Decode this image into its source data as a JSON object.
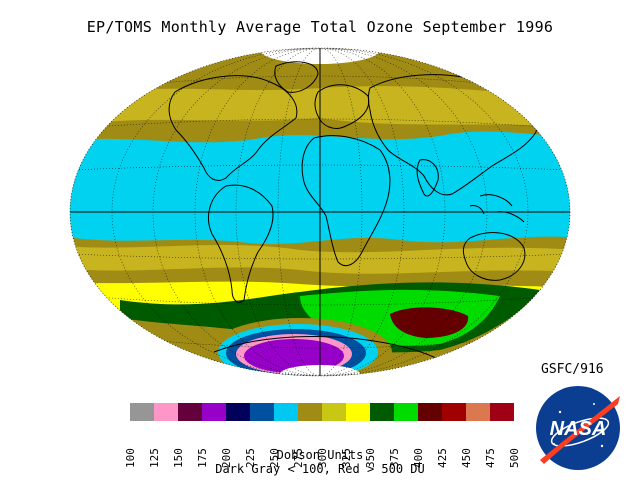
{
  "title": "EP/TOMS Monthly Average Total Ozone September 1996",
  "credit": "GSFC/916",
  "legend": {
    "units": "Dobson Units",
    "range_note": "Dark Gray < 100, Red > 500 DU",
    "bins": [
      {
        "label": "100",
        "color": "#969696"
      },
      {
        "label": "125",
        "color": "#ff96c8"
      },
      {
        "label": "150",
        "color": "#64003c"
      },
      {
        "label": "175",
        "color": "#9600c8"
      },
      {
        "label": "200",
        "color": "#00005a"
      },
      {
        "label": "225",
        "color": "#0050a0"
      },
      {
        "label": "250",
        "color": "#00c8f0"
      },
      {
        "label": "275",
        "color": "#a08c14"
      },
      {
        "label": "300",
        "color": "#c8c814"
      },
      {
        "label": "325",
        "color": "#ffff00"
      },
      {
        "label": "350",
        "color": "#005a00"
      },
      {
        "label": "375",
        "color": "#00dc00"
      },
      {
        "label": "400",
        "color": "#640000"
      },
      {
        "label": "425",
        "color": "#a00000"
      },
      {
        "label": "450",
        "color": "#dc7850"
      },
      {
        "label": "475",
        "color": "#a00014"
      }
    ],
    "final_tick": "500"
  },
  "logo": {
    "text": "NASA",
    "colors": {
      "blue": "#0b3d91",
      "red": "#fc3d21"
    }
  },
  "colors": {
    "tropics": "#00d2f0",
    "midlat": "#a08c14",
    "midlat_light": "#c8b41e",
    "yellow": "#ffff00",
    "dark_green": "#005a00",
    "green": "#00dc00",
    "dark_red": "#640000",
    "hole_purple": "#9600c8",
    "hole_blue": "#0050a0",
    "hole_pink": "#ff96c8"
  }
}
